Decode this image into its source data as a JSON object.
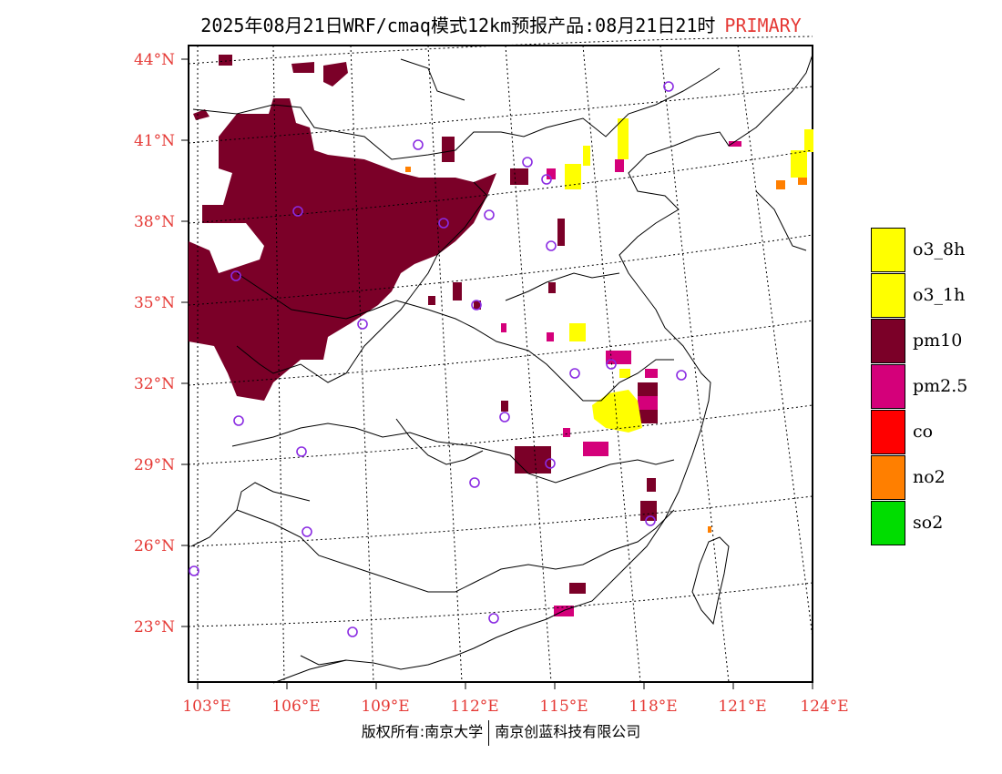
{
  "title": {
    "main": "2025年08月21日WRF/cmaq模式12km预报产品:08月21日21时",
    "tag": "PRIMARY"
  },
  "axes": {
    "lat_labels": [
      "44°N",
      "41°N",
      "38°N",
      "35°N",
      "32°N",
      "29°N",
      "26°N",
      "23°N"
    ],
    "lon_labels": [
      "103°E",
      "106°E",
      "109°E",
      "112°E",
      "115°E",
      "118°E",
      "121°E",
      "124°E"
    ]
  },
  "legend": [
    {
      "label": "o3_8h",
      "color": "#ffff00"
    },
    {
      "label": "o3_1h",
      "color": "#ffff00"
    },
    {
      "label": "pm10",
      "color": "#7b0028"
    },
    {
      "label": "pm2.5",
      "color": "#d4007a"
    },
    {
      "label": "co",
      "color": "#ff0000"
    },
    {
      "label": "no2",
      "color": "#ff7f00"
    },
    {
      "label": "so2",
      "color": "#00dd00"
    }
  ],
  "footer": {
    "left": "版权所有:南京大学",
    "right": "南京创蓝科技有限公司"
  }
}
